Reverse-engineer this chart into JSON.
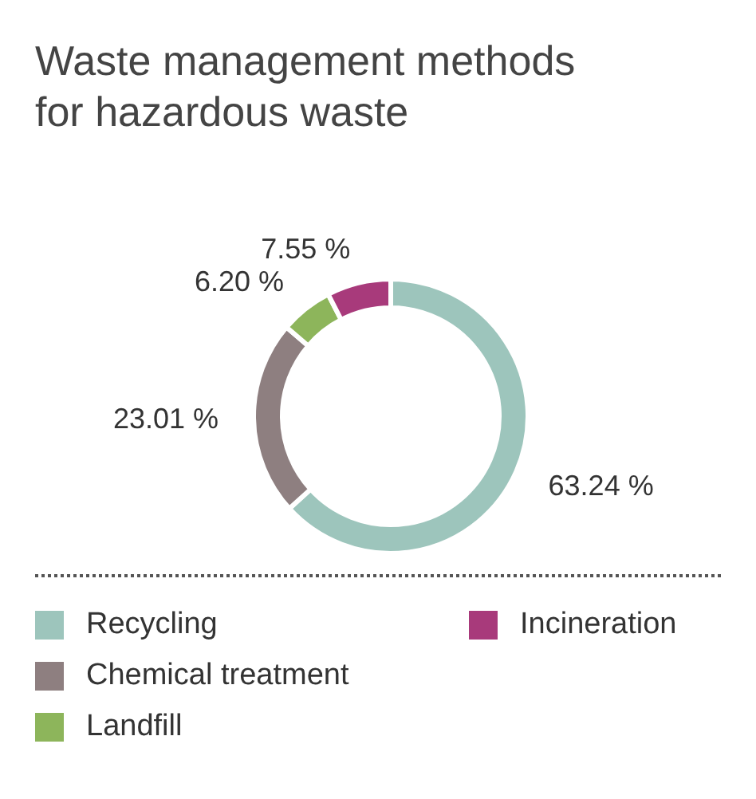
{
  "chart_data": {
    "type": "donut",
    "title": "Waste management methods for hazardous waste",
    "categories": [
      "Recycling",
      "Chemical treatment",
      "Landfill",
      "Incineration"
    ],
    "values": [
      63.24,
      23.01,
      6.2,
      7.55
    ],
    "value_labels": [
      "63.24 %",
      "23.01 %",
      "6.20 %",
      "7.55 %"
    ],
    "colors": [
      "#9dc5bc",
      "#8e7f80",
      "#8db55b",
      "#a83a7b"
    ],
    "legend": "bottom"
  }
}
